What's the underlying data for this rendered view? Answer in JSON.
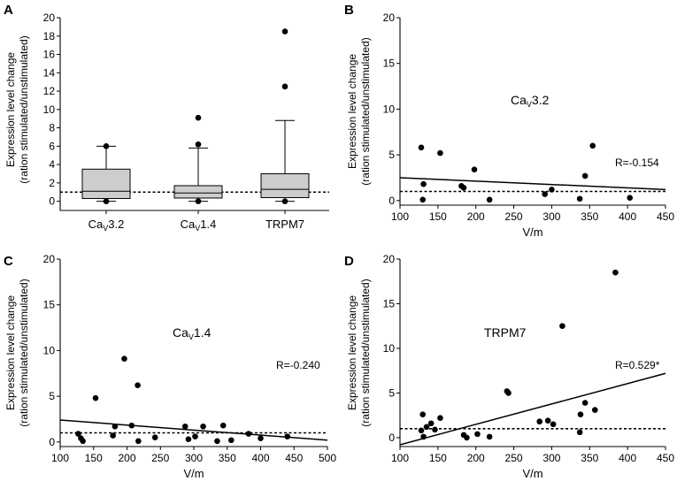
{
  "colors": {
    "axis": "#000000",
    "box_fill": "#cdcdcd",
    "point": "#000000"
  },
  "chart_data": [
    {
      "panel": "A",
      "type": "box",
      "categories": [
        {
          "base": "Ca",
          "sub": "V",
          "rest": "3.2"
        },
        {
          "base": "Ca",
          "sub": "V",
          "rest": "1.4"
        },
        {
          "base": "TRPM7",
          "sub": "",
          "rest": ""
        }
      ],
      "boxes": [
        {
          "whislo": 0,
          "q1": 0.3,
          "med": 1.1,
          "q3": 3.5,
          "whishi": 6.0,
          "fliers": [
            6.0,
            0.0
          ]
        },
        {
          "whislo": 0,
          "q1": 0.35,
          "med": 0.9,
          "q3": 1.7,
          "whishi": 5.8,
          "fliers": [
            9.1,
            6.2,
            0.0
          ]
        },
        {
          "whislo": 0,
          "q1": 0.4,
          "med": 1.3,
          "q3": 3.0,
          "whishi": 8.8,
          "fliers": [
            18.5,
            12.5,
            0.0
          ]
        }
      ],
      "reference_line": 1,
      "ylabel": [
        "Expression level change",
        "(ration stimulated/unstimulated)"
      ],
      "xlabel": "",
      "ylim": [
        -1,
        20
      ],
      "yticks": [
        0,
        2,
        4,
        6,
        8,
        10,
        12,
        14,
        16,
        18,
        20
      ]
    },
    {
      "panel": "B",
      "type": "scatter",
      "series_label": {
        "base": "Ca",
        "sub": "V",
        "rest": "3.2"
      },
      "points": [
        [
          128,
          5.8
        ],
        [
          131,
          1.8
        ],
        [
          130,
          0.1
        ],
        [
          153,
          5.2
        ],
        [
          181,
          1.6
        ],
        [
          184,
          1.4
        ],
        [
          198,
          3.4
        ],
        [
          218,
          0.1
        ],
        [
          291,
          0.7
        ],
        [
          300,
          1.2
        ],
        [
          337,
          0.2
        ],
        [
          344,
          2.7
        ],
        [
          354,
          6.0
        ],
        [
          403,
          0.3
        ]
      ],
      "regression": {
        "x": [
          100,
          450
        ],
        "y": [
          2.5,
          1.2
        ]
      },
      "annotation": "R=-0.154",
      "reference_line": 1,
      "xlabel": "V/m",
      "ylabel": [
        "Expression level change",
        "(ration stimulated/unstimulated)"
      ],
      "xlim": [
        100,
        450
      ],
      "ylim": [
        -0.5,
        20
      ],
      "xticks": [
        100,
        150,
        200,
        250,
        300,
        350,
        400,
        450
      ],
      "yticks": [
        0,
        5,
        10,
        15,
        20
      ]
    },
    {
      "panel": "C",
      "type": "scatter",
      "series_label": {
        "base": "Ca",
        "sub": "V",
        "rest": "1.4"
      },
      "points": [
        [
          127,
          0.9
        ],
        [
          131,
          0.4
        ],
        [
          134,
          0.1
        ],
        [
          153,
          4.8
        ],
        [
          179,
          0.7
        ],
        [
          182,
          1.7
        ],
        [
          196,
          9.1
        ],
        [
          207,
          1.8
        ],
        [
          216,
          6.2
        ],
        [
          217,
          0.1
        ],
        [
          242,
          0.5
        ],
        [
          287,
          1.7
        ],
        [
          292,
          0.3
        ],
        [
          302,
          0.6
        ],
        [
          314,
          1.7
        ],
        [
          335,
          0.1
        ],
        [
          344,
          1.8
        ],
        [
          356,
          0.2
        ],
        [
          382,
          0.9
        ],
        [
          400,
          0.4
        ],
        [
          440,
          0.6
        ]
      ],
      "regression": {
        "x": [
          100,
          500
        ],
        "y": [
          2.4,
          0.2
        ]
      },
      "annotation": "R=-0.240",
      "reference_line": 1,
      "xlabel": "V/m",
      "ylabel": [
        "Expression level change",
        "(ration stimulated/unstimulated)"
      ],
      "xlim": [
        100,
        500
      ],
      "ylim": [
        -0.5,
        20
      ],
      "xticks": [
        100,
        150,
        200,
        250,
        300,
        350,
        400,
        450,
        500
      ],
      "yticks": [
        0,
        5,
        10,
        15,
        20
      ]
    },
    {
      "panel": "D",
      "type": "scatter",
      "series_label": {
        "base": "TRPM7",
        "sub": "",
        "rest": ""
      },
      "points": [
        [
          128,
          0.8
        ],
        [
          130,
          2.6
        ],
        [
          131,
          0.1
        ],
        [
          135,
          1.2
        ],
        [
          141,
          1.6
        ],
        [
          146,
          0.9
        ],
        [
          153,
          2.2
        ],
        [
          184,
          0.3
        ],
        [
          188,
          0.0
        ],
        [
          202,
          0.4
        ],
        [
          218,
          0.1
        ],
        [
          243,
          5.0
        ],
        [
          241,
          5.2
        ],
        [
          284,
          1.8
        ],
        [
          295,
          1.9
        ],
        [
          302,
          1.5
        ],
        [
          314,
          12.5
        ],
        [
          337,
          0.6
        ],
        [
          338,
          2.6
        ],
        [
          344,
          3.9
        ],
        [
          357,
          3.1
        ],
        [
          384,
          18.5
        ]
      ],
      "regression": {
        "x": [
          100,
          450
        ],
        "y": [
          -0.8,
          7.2
        ]
      },
      "annotation": "R=0.529*",
      "reference_line": 1,
      "xlabel": "V/m",
      "ylabel": [
        "Expression level change",
        "(ration stimulated/unstimulated)"
      ],
      "xlim": [
        100,
        450
      ],
      "ylim": [
        -1,
        20
      ],
      "xticks": [
        100,
        150,
        200,
        250,
        300,
        350,
        400,
        450
      ],
      "yticks": [
        0,
        5,
        10,
        15,
        20
      ]
    }
  ]
}
